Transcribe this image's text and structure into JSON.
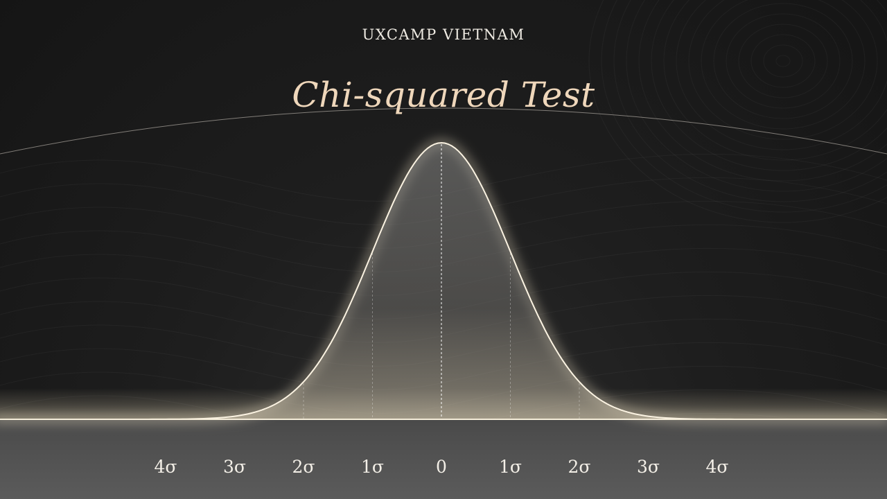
{
  "header": {
    "eyebrow": "UXCAMP VIETNAM",
    "title": "Chi-squared Test"
  },
  "colors": {
    "background": "#1b1b1b",
    "curve_stroke": "#fbf3e2",
    "title": "#efd7bb",
    "text": "#eeeae2"
  },
  "chart_data": {
    "type": "area",
    "title": "Chi-squared Test",
    "xlabel": "",
    "ylabel": "",
    "distribution": "normal",
    "mean": 0,
    "sd": 1,
    "xlim": [
      -4,
      4
    ],
    "categories": [
      "4σ",
      "3σ",
      "2σ",
      "1σ",
      "0",
      "1σ",
      "2σ",
      "3σ",
      "4σ"
    ],
    "x": [
      -4,
      -3,
      -2,
      -1,
      0,
      1,
      2,
      3,
      4
    ],
    "dashed_guides": [
      -2,
      -1,
      0,
      1,
      2
    ],
    "grid": false,
    "legend": "none"
  }
}
